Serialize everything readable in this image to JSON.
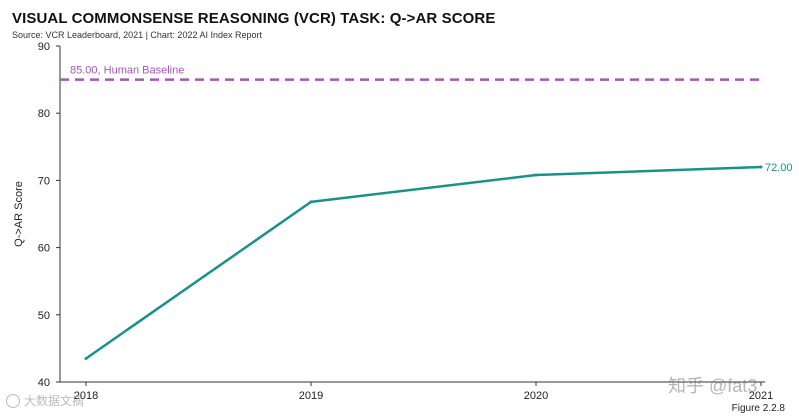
{
  "header": {
    "title": "VISUAL COMMONSENSE REASONING (VCR) TASK: Q->AR SCORE",
    "source": "Source: VCR Leaderboard, 2021 | Chart: 2022 AI Index Report"
  },
  "footer": {
    "figure_label": "Figure 2.2.8"
  },
  "watermarks": {
    "right": "知乎 @fat3",
    "left": "大数据文摘"
  },
  "chart_data": {
    "type": "line",
    "title": "VISUAL COMMONSENSE REASONING (VCR) TASK: Q->AR SCORE",
    "xlabel": "",
    "ylabel": "Q->AR Score",
    "ylim": [
      40,
      90
    ],
    "yticks": [
      40,
      50,
      60,
      70,
      80,
      90
    ],
    "xticks": [
      {
        "label": "2018",
        "value": 2018.0
      },
      {
        "label": "2019",
        "value": 2019.0
      },
      {
        "label": "2020",
        "value": 2020.0
      },
      {
        "label": "2021",
        "value": 2021.0
      }
    ],
    "xlim": [
      2018.0,
      2021.0
    ],
    "grid": false,
    "series": [
      {
        "name": "Q->AR Score",
        "color": "#1a9189",
        "x": [
          2018.0,
          2019.0,
          2020.0,
          2021.0
        ],
        "values": [
          43.5,
          66.8,
          70.8,
          72.0
        ],
        "end_label": "72.00"
      }
    ],
    "reference_line": {
      "label": "85.00, Human Baseline",
      "value": 85.0,
      "color": "#a558b0",
      "style": "dashed"
    }
  }
}
